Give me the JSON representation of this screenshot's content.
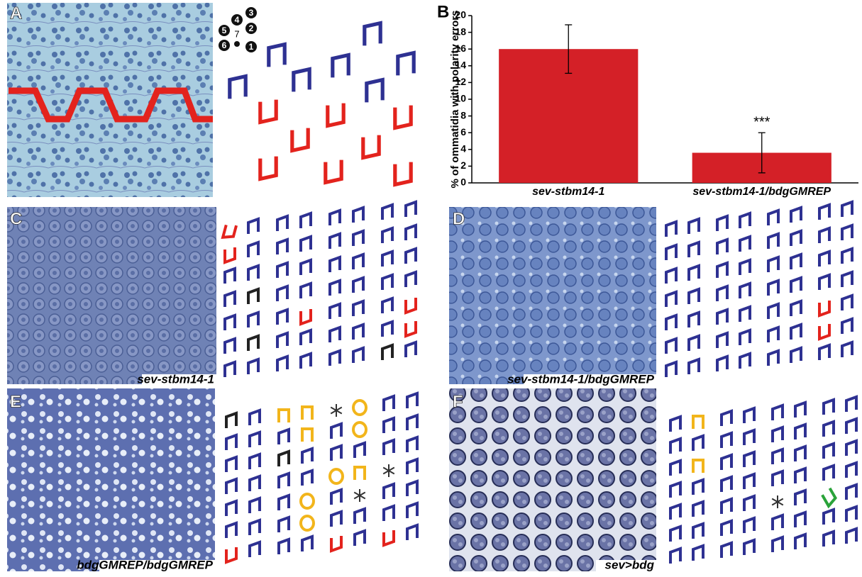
{
  "panels": {
    "labels": [
      "A",
      "B",
      "C",
      "D",
      "E",
      "F"
    ],
    "captions": {
      "C": "sev-stbm14-1",
      "D": "sev-stbm14-1/bdgGMREP",
      "E": "bdgGMREP/bdgGMREP",
      "F": "sev>bdg"
    },
    "ommatidium_key": [
      "1",
      "2",
      "3",
      "4",
      "5",
      "6",
      "7"
    ]
  },
  "chart_data": {
    "type": "bar",
    "y_label": "% of ommatidia with polarity errors",
    "categories": [
      "sev-stbm14-1",
      "sev-stbm14-1/bdgGMREP"
    ],
    "values": [
      16,
      3.6
    ],
    "errors": [
      2.9,
      2.4
    ],
    "annotation": "***",
    "annotation_index": 1,
    "color": "#d42027",
    "ylim": [
      0,
      20
    ],
    "yticks": [
      0,
      2,
      4,
      6,
      8,
      10,
      12,
      14,
      16,
      18,
      20
    ]
  }
}
